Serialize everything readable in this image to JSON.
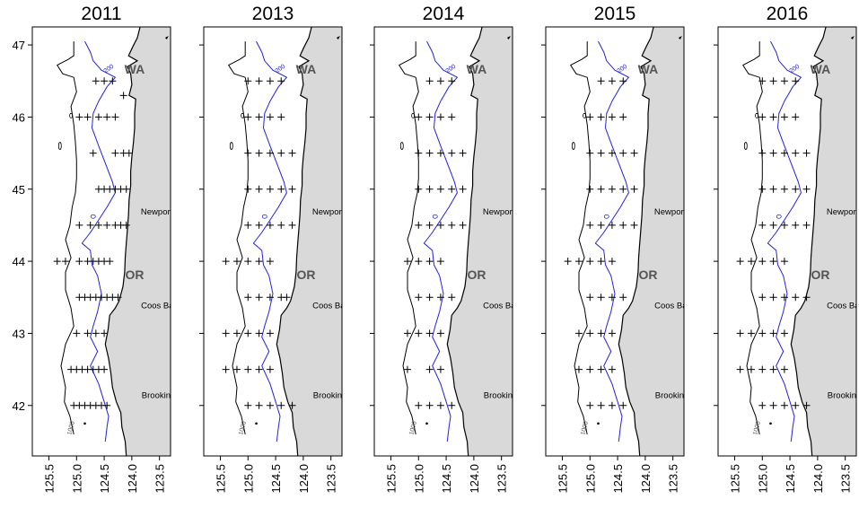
{
  "figure": {
    "panels": [
      {
        "year": "2011",
        "stations": [
          [
            -124.65,
            46.5
          ],
          [
            -124.5,
            46.5
          ],
          [
            -124.35,
            46.5
          ],
          [
            -124.15,
            46.3
          ],
          [
            -124.95,
            46.0
          ],
          [
            -124.8,
            46.0
          ],
          [
            -124.6,
            46.0
          ],
          [
            -124.45,
            46.0
          ],
          [
            -124.3,
            46.0
          ],
          [
            -124.7,
            45.5
          ],
          [
            -124.3,
            45.5
          ],
          [
            -124.15,
            45.5
          ],
          [
            -124.05,
            45.5
          ],
          [
            -124.6,
            45.0
          ],
          [
            -124.5,
            45.0
          ],
          [
            -124.4,
            45.0
          ],
          [
            -124.3,
            45.0
          ],
          [
            -124.2,
            45.0
          ],
          [
            -124.1,
            45.0
          ],
          [
            -124.95,
            44.5
          ],
          [
            -124.75,
            44.5
          ],
          [
            -124.6,
            44.5
          ],
          [
            -124.45,
            44.5
          ],
          [
            -124.3,
            44.5
          ],
          [
            -124.2,
            44.5
          ],
          [
            -124.1,
            44.5
          ],
          [
            -125.35,
            44.0
          ],
          [
            -125.2,
            44.0
          ],
          [
            -124.95,
            44.0
          ],
          [
            -124.8,
            44.0
          ],
          [
            -124.7,
            44.0
          ],
          [
            -124.6,
            44.0
          ],
          [
            -124.5,
            44.0
          ],
          [
            -124.4,
            44.0
          ],
          [
            -124.95,
            43.5
          ],
          [
            -124.85,
            43.5
          ],
          [
            -124.75,
            43.5
          ],
          [
            -124.65,
            43.5
          ],
          [
            -124.55,
            43.5
          ],
          [
            -124.45,
            43.5
          ],
          [
            -124.35,
            43.5
          ],
          [
            -124.25,
            43.5
          ],
          [
            -125.0,
            43.0
          ],
          [
            -124.8,
            43.0
          ],
          [
            -124.65,
            43.0
          ],
          [
            -124.5,
            43.0
          ],
          [
            -125.1,
            42.5
          ],
          [
            -125.0,
            42.5
          ],
          [
            -124.9,
            42.5
          ],
          [
            -124.8,
            42.5
          ],
          [
            -124.7,
            42.5
          ],
          [
            -124.6,
            42.5
          ],
          [
            -124.5,
            42.5
          ],
          [
            -125.05,
            42.0
          ],
          [
            -124.95,
            42.0
          ],
          [
            -124.85,
            42.0
          ],
          [
            -124.75,
            42.0
          ],
          [
            -124.65,
            42.0
          ],
          [
            -124.55,
            42.0
          ],
          [
            -124.45,
            42.0
          ]
        ]
      },
      {
        "year": "2013",
        "stations": [
          [
            -125.0,
            46.5
          ],
          [
            -124.8,
            46.5
          ],
          [
            -124.6,
            46.5
          ],
          [
            -124.4,
            46.5
          ],
          [
            -125.0,
            46.0
          ],
          [
            -124.8,
            46.0
          ],
          [
            -124.6,
            46.0
          ],
          [
            -124.4,
            46.0
          ],
          [
            -125.0,
            45.5
          ],
          [
            -124.8,
            45.5
          ],
          [
            -124.6,
            45.5
          ],
          [
            -124.4,
            45.5
          ],
          [
            -124.2,
            45.5
          ],
          [
            -125.0,
            45.0
          ],
          [
            -124.8,
            45.0
          ],
          [
            -124.6,
            45.0
          ],
          [
            -124.4,
            45.0
          ],
          [
            -124.2,
            45.0
          ],
          [
            -125.0,
            44.5
          ],
          [
            -124.8,
            44.5
          ],
          [
            -124.6,
            44.5
          ],
          [
            -124.4,
            44.5
          ],
          [
            -124.2,
            44.5
          ],
          [
            -125.4,
            44.0
          ],
          [
            -125.2,
            44.0
          ],
          [
            -125.0,
            44.0
          ],
          [
            -124.8,
            44.0
          ],
          [
            -124.6,
            44.0
          ],
          [
            -125.0,
            43.5
          ],
          [
            -124.8,
            43.5
          ],
          [
            -124.6,
            43.5
          ],
          [
            -124.4,
            43.5
          ],
          [
            -124.3,
            43.5
          ],
          [
            -125.4,
            43.0
          ],
          [
            -125.2,
            43.0
          ],
          [
            -125.0,
            43.0
          ],
          [
            -124.8,
            43.0
          ],
          [
            -124.6,
            43.0
          ],
          [
            -125.4,
            42.5
          ],
          [
            -125.2,
            42.5
          ],
          [
            -125.0,
            42.5
          ],
          [
            -124.8,
            42.5
          ],
          [
            -124.6,
            42.5
          ],
          [
            -125.0,
            42.0
          ],
          [
            -124.8,
            42.0
          ],
          [
            -124.6,
            42.0
          ],
          [
            -124.4,
            42.0
          ],
          [
            -124.2,
            42.0
          ]
        ]
      },
      {
        "year": "2014",
        "stations": [
          [
            -124.8,
            46.5
          ],
          [
            -124.6,
            46.5
          ],
          [
            -124.4,
            46.5
          ],
          [
            -125.0,
            46.0
          ],
          [
            -124.8,
            46.0
          ],
          [
            -124.6,
            46.0
          ],
          [
            -124.4,
            46.0
          ],
          [
            -125.0,
            45.5
          ],
          [
            -124.8,
            45.5
          ],
          [
            -124.6,
            45.5
          ],
          [
            -124.4,
            45.5
          ],
          [
            -124.2,
            45.5
          ],
          [
            -125.0,
            45.0
          ],
          [
            -124.8,
            45.0
          ],
          [
            -124.6,
            45.0
          ],
          [
            -124.4,
            45.0
          ],
          [
            -124.2,
            45.0
          ],
          [
            -125.0,
            44.5
          ],
          [
            -124.8,
            44.5
          ],
          [
            -124.6,
            44.5
          ],
          [
            -124.4,
            44.5
          ],
          [
            -124.2,
            44.5
          ],
          [
            -125.2,
            44.0
          ],
          [
            -125.0,
            44.0
          ],
          [
            -124.8,
            44.0
          ],
          [
            -124.6,
            44.0
          ],
          [
            -125.0,
            43.5
          ],
          [
            -124.8,
            43.5
          ],
          [
            -124.6,
            43.5
          ],
          [
            -124.4,
            43.5
          ],
          [
            -125.2,
            43.0
          ],
          [
            -125.0,
            43.0
          ],
          [
            -124.8,
            43.0
          ],
          [
            -124.6,
            43.0
          ],
          [
            -125.2,
            42.5
          ],
          [
            -124.8,
            42.5
          ],
          [
            -124.6,
            42.5
          ],
          [
            -125.0,
            42.0
          ],
          [
            -124.8,
            42.0
          ],
          [
            -124.6,
            42.0
          ],
          [
            -124.4,
            42.0
          ]
        ]
      },
      {
        "year": "2015",
        "stations": [
          [
            -124.8,
            46.5
          ],
          [
            -124.6,
            46.5
          ],
          [
            -124.4,
            46.5
          ],
          [
            -125.0,
            46.0
          ],
          [
            -124.8,
            46.0
          ],
          [
            -124.6,
            46.0
          ],
          [
            -124.4,
            46.0
          ],
          [
            -125.0,
            45.5
          ],
          [
            -124.8,
            45.5
          ],
          [
            -124.6,
            45.5
          ],
          [
            -124.4,
            45.5
          ],
          [
            -124.2,
            45.5
          ],
          [
            -125.0,
            45.0
          ],
          [
            -124.8,
            45.0
          ],
          [
            -124.6,
            45.0
          ],
          [
            -124.4,
            45.0
          ],
          [
            -124.2,
            45.0
          ],
          [
            -125.0,
            44.5
          ],
          [
            -124.8,
            44.5
          ],
          [
            -124.6,
            44.5
          ],
          [
            -124.4,
            44.5
          ],
          [
            -124.2,
            44.5
          ],
          [
            -125.4,
            44.0
          ],
          [
            -125.2,
            44.0
          ],
          [
            -125.0,
            44.0
          ],
          [
            -124.8,
            44.0
          ],
          [
            -124.6,
            44.0
          ],
          [
            -125.0,
            43.5
          ],
          [
            -124.8,
            43.5
          ],
          [
            -124.6,
            43.5
          ],
          [
            -124.4,
            43.5
          ],
          [
            -125.2,
            43.0
          ],
          [
            -125.0,
            43.0
          ],
          [
            -124.8,
            43.0
          ],
          [
            -124.6,
            43.0
          ],
          [
            -125.2,
            42.5
          ],
          [
            -125.0,
            42.5
          ],
          [
            -124.8,
            42.5
          ],
          [
            -124.6,
            42.5
          ],
          [
            -125.0,
            42.0
          ],
          [
            -124.8,
            42.0
          ],
          [
            -124.6,
            42.0
          ],
          [
            -124.4,
            42.0
          ]
        ]
      },
      {
        "year": "2016",
        "stations": [
          [
            -125.0,
            46.5
          ],
          [
            -124.8,
            46.5
          ],
          [
            -124.6,
            46.5
          ],
          [
            -124.4,
            46.5
          ],
          [
            -125.0,
            46.0
          ],
          [
            -124.8,
            46.0
          ],
          [
            -124.6,
            46.0
          ],
          [
            -124.4,
            46.0
          ],
          [
            -125.0,
            45.5
          ],
          [
            -124.8,
            45.5
          ],
          [
            -124.6,
            45.5
          ],
          [
            -124.4,
            45.5
          ],
          [
            -124.2,
            45.5
          ],
          [
            -125.0,
            45.0
          ],
          [
            -124.8,
            45.0
          ],
          [
            -124.6,
            45.0
          ],
          [
            -124.4,
            45.0
          ],
          [
            -124.2,
            45.0
          ],
          [
            -125.0,
            44.5
          ],
          [
            -124.8,
            44.5
          ],
          [
            -124.6,
            44.5
          ],
          [
            -124.4,
            44.5
          ],
          [
            -124.2,
            44.5
          ],
          [
            -125.4,
            44.0
          ],
          [
            -125.2,
            44.0
          ],
          [
            -125.0,
            44.0
          ],
          [
            -124.8,
            44.0
          ],
          [
            -124.6,
            44.0
          ],
          [
            -125.0,
            43.5
          ],
          [
            -124.8,
            43.5
          ],
          [
            -124.6,
            43.5
          ],
          [
            -124.4,
            43.5
          ],
          [
            -124.2,
            43.5
          ],
          [
            -125.4,
            43.0
          ],
          [
            -125.2,
            43.0
          ],
          [
            -125.0,
            43.0
          ],
          [
            -124.8,
            43.0
          ],
          [
            -124.6,
            43.0
          ],
          [
            -125.4,
            42.5
          ],
          [
            -125.2,
            42.5
          ],
          [
            -125.0,
            42.5
          ],
          [
            -124.8,
            42.5
          ],
          [
            -124.6,
            42.5
          ],
          [
            -125.0,
            42.0
          ],
          [
            -124.8,
            42.0
          ],
          [
            -124.6,
            42.0
          ],
          [
            -124.4,
            42.0
          ],
          [
            -124.2,
            42.0
          ]
        ]
      }
    ],
    "lat_ticks": [
      42,
      43,
      44,
      45,
      46,
      47
    ],
    "lat_labels": [
      "42",
      "43",
      "44",
      "45",
      "46",
      "47"
    ],
    "lon_ticks": [
      -125.5,
      -125.0,
      -124.5,
      -124.0,
      -123.5
    ],
    "lon_labels": [
      "125.5",
      "125.0",
      "124.5",
      "124.0",
      "123.5"
    ],
    "lon_range": [
      -125.8,
      -123.3
    ],
    "lat_range": [
      41.3,
      47.25
    ],
    "place_labels": [
      {
        "name": "WA",
        "type": "state",
        "lon": -123.95,
        "lat": 46.6
      },
      {
        "name": "OR",
        "type": "state",
        "lon": -123.95,
        "lat": 43.75
      },
      {
        "name": "Newport",
        "type": "city",
        "lon": -123.55,
        "lat": 44.65
      },
      {
        "name": "Coos Bay",
        "type": "city",
        "lon": -123.5,
        "lat": 43.35
      },
      {
        "name": "Brookings",
        "type": "city",
        "lon": -123.48,
        "lat": 42.1
      }
    ],
    "contours": [
      {
        "label": "200",
        "color": "#2222dd",
        "lon": -124.4,
        "lat": 46.65
      },
      {
        "label": "1000",
        "color": "#555555",
        "lon": -125.07,
        "lat": 41.68
      }
    ],
    "colors": {
      "land": "#d9d9d9",
      "ocean": "#ffffff",
      "coastline": "#000000",
      "isobath_200": "#2222dd",
      "isobath_1000": "#555555",
      "station": "#000000"
    }
  }
}
